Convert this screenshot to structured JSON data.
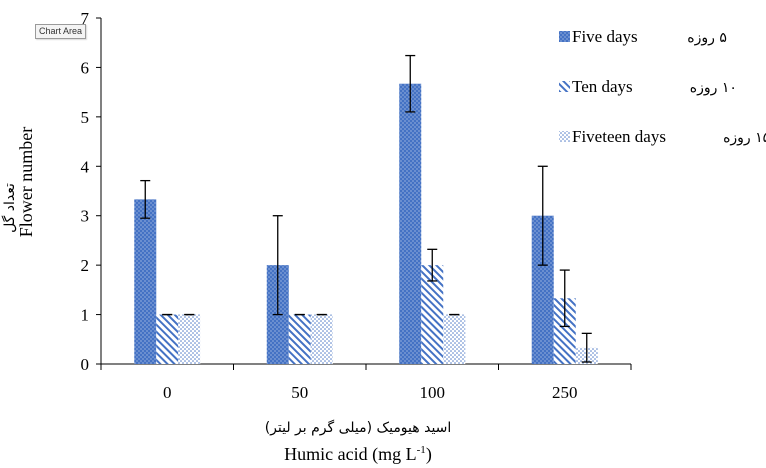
{
  "tooltip": "Chart Area",
  "chart_data": {
    "type": "bar",
    "categories": [
      "0",
      "50",
      "100",
      "250"
    ],
    "series": [
      {
        "name": "Five days",
        "name_fa": "۵ روزه",
        "values": [
          3.33,
          2.0,
          5.67,
          3.0
        ],
        "errors": [
          0.38,
          1.0,
          0.57,
          1.0
        ],
        "color": "#4472c4",
        "pattern": "dots-dense"
      },
      {
        "name": "Ten days",
        "name_fa": "۱۰ روزه",
        "values": [
          1.0,
          1.0,
          2.0,
          1.33
        ],
        "errors": [
          0.0,
          0.0,
          0.32,
          0.57
        ],
        "color": "#4472c4",
        "pattern": "diagonal"
      },
      {
        "name": "Fiveteen days",
        "name_fa": "۱۵ روزه",
        "values": [
          1.0,
          1.0,
          1.0,
          0.33
        ],
        "errors": [
          0.0,
          0.0,
          0.0,
          0.29
        ],
        "color": "#4472c4",
        "pattern": "dots-sparse"
      }
    ],
    "xlabel_fa": "اسید هیومیک (میلی گرم بر لیتر)",
    "xlabel": "Humic acid (mg L",
    "xlabel_sup": "-1",
    "xlabel_end": ")",
    "ylabel": "Flower number",
    "ylabel_fa": "تعداد گل",
    "ylim": [
      0,
      7
    ],
    "yticks": [
      "0",
      "1",
      "2",
      "3",
      "4",
      "5",
      "6",
      "7"
    ],
    "legend_position": "top-right",
    "grid": false
  }
}
